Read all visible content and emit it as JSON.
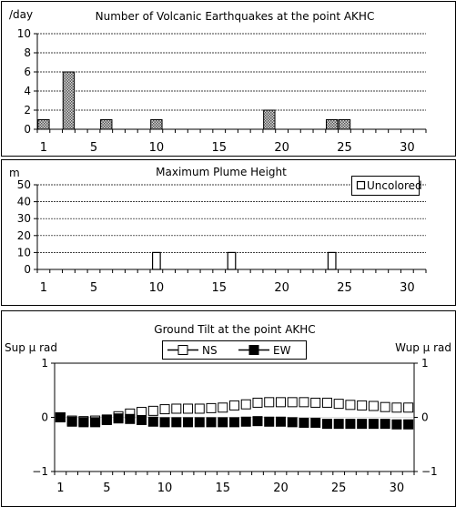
{
  "chart_data": [
    {
      "type": "bar",
      "title": "Number of Volcanic Earthquakes at the point AKHC",
      "ylabel": "/day",
      "ylim": [
        0,
        10
      ],
      "yticks": [
        0,
        2,
        4,
        6,
        8,
        10
      ],
      "xlim": [
        1,
        31
      ],
      "xticks": [
        1,
        5,
        10,
        15,
        20,
        25,
        30
      ],
      "grid": true,
      "bar_pattern": "crosshatch",
      "x": [
        1,
        3,
        6,
        10,
        19,
        24,
        25
      ],
      "values": [
        1,
        6,
        1,
        1,
        2,
        1,
        1
      ]
    },
    {
      "type": "bar",
      "title": "Maximum Plume Height",
      "ylabel": "m",
      "ylim": [
        0,
        50
      ],
      "yticks": [
        0,
        10,
        20,
        30,
        40,
        50
      ],
      "xlim": [
        1,
        31
      ],
      "xticks": [
        1,
        5,
        10,
        15,
        20,
        25,
        30
      ],
      "grid": true,
      "legend": "top-right",
      "series": [
        {
          "name": "Uncolored",
          "x": [
            10,
            16,
            24
          ],
          "values": [
            10,
            10,
            10
          ]
        }
      ]
    },
    {
      "type": "scatter",
      "title": "Ground Tilt at the point AKHC",
      "ylabel_left": "Sup μ rad",
      "ylabel_right": "Wup μ rad",
      "ylim": [
        -1,
        1
      ],
      "yticks": [
        -1,
        0,
        1
      ],
      "ytick_labels": [
        "−1",
        "0",
        "1"
      ],
      "xlim": [
        1,
        31
      ],
      "xticks": [
        1,
        5,
        10,
        15,
        20,
        25,
        30
      ],
      "grid": false,
      "legend": "top-center",
      "series": [
        {
          "name": "NS",
          "marker": "open-square",
          "color": "#000000",
          "x": [
            1,
            2,
            3,
            4,
            5,
            6,
            7,
            8,
            9,
            10,
            11,
            12,
            13,
            14,
            15,
            16,
            17,
            18,
            19,
            20,
            21,
            22,
            23,
            24,
            25,
            26,
            27,
            28,
            29,
            30,
            31
          ],
          "values": [
            0.0,
            -0.06,
            -0.07,
            -0.06,
            -0.04,
            0.02,
            0.07,
            0.1,
            0.12,
            0.15,
            0.16,
            0.16,
            0.16,
            0.17,
            0.18,
            0.22,
            0.24,
            0.27,
            0.28,
            0.28,
            0.28,
            0.28,
            0.27,
            0.27,
            0.25,
            0.23,
            0.22,
            0.21,
            0.19,
            0.18,
            0.18
          ]
        },
        {
          "name": "EW",
          "marker": "filled-square",
          "color": "#000000",
          "x": [
            1,
            2,
            3,
            4,
            5,
            6,
            7,
            8,
            9,
            10,
            11,
            12,
            13,
            14,
            15,
            16,
            17,
            18,
            19,
            20,
            21,
            22,
            23,
            24,
            25,
            26,
            27,
            28,
            29,
            30,
            31
          ],
          "values": [
            0.0,
            -0.08,
            -0.09,
            -0.09,
            -0.05,
            -0.02,
            -0.03,
            -0.05,
            -0.08,
            -0.09,
            -0.09,
            -0.09,
            -0.09,
            -0.09,
            -0.09,
            -0.09,
            -0.08,
            -0.07,
            -0.08,
            -0.08,
            -0.09,
            -0.1,
            -0.1,
            -0.12,
            -0.12,
            -0.12,
            -0.12,
            -0.12,
            -0.12,
            -0.13,
            -0.13
          ]
        }
      ]
    }
  ]
}
